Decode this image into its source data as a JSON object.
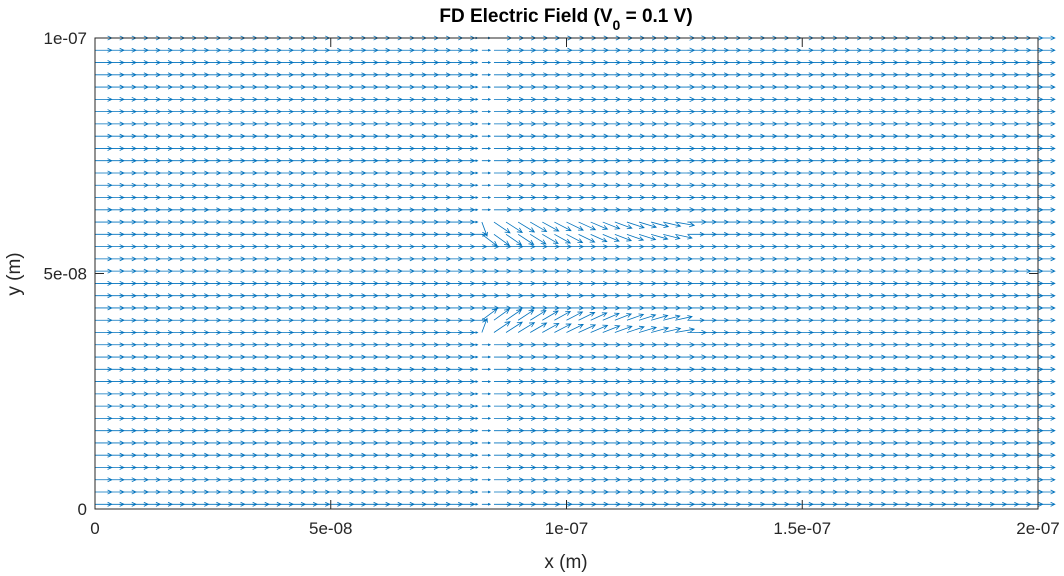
{
  "chart_data": {
    "type": "quiver",
    "title": {
      "main": "FD Electric Field (V",
      "subscript": "0",
      "suffix": " = 0.1 V)"
    },
    "xlabel": "x (m)",
    "ylabel": "y (m)",
    "xlim": [
      0,
      2e-07
    ],
    "ylim": [
      0,
      1e-07
    ],
    "xticks": [
      {
        "value": 0,
        "label": "0"
      },
      {
        "value": 5e-08,
        "label": "5e-08"
      },
      {
        "value": 1e-07,
        "label": "1e-07"
      },
      {
        "value": 1.5e-07,
        "label": "1.5e-07"
      },
      {
        "value": 2e-07,
        "label": "2e-07"
      }
    ],
    "yticks": [
      {
        "value": 0,
        "label": "0"
      },
      {
        "value": 5e-08,
        "label": "5e-08"
      },
      {
        "value": 1e-07,
        "label": "1e-07"
      }
    ],
    "grid": false,
    "color": "#0072BD",
    "field": {
      "nx": 79,
      "ny": 39,
      "x_range": [
        0,
        2e-07
      ],
      "y_range": [
        1e-09,
        1e-07
      ],
      "bottleneck": {
        "x_start": 8e-08,
        "x_end": 1.25e-07,
        "y_low": 4e-08,
        "y_high": 6e-08
      }
    }
  }
}
